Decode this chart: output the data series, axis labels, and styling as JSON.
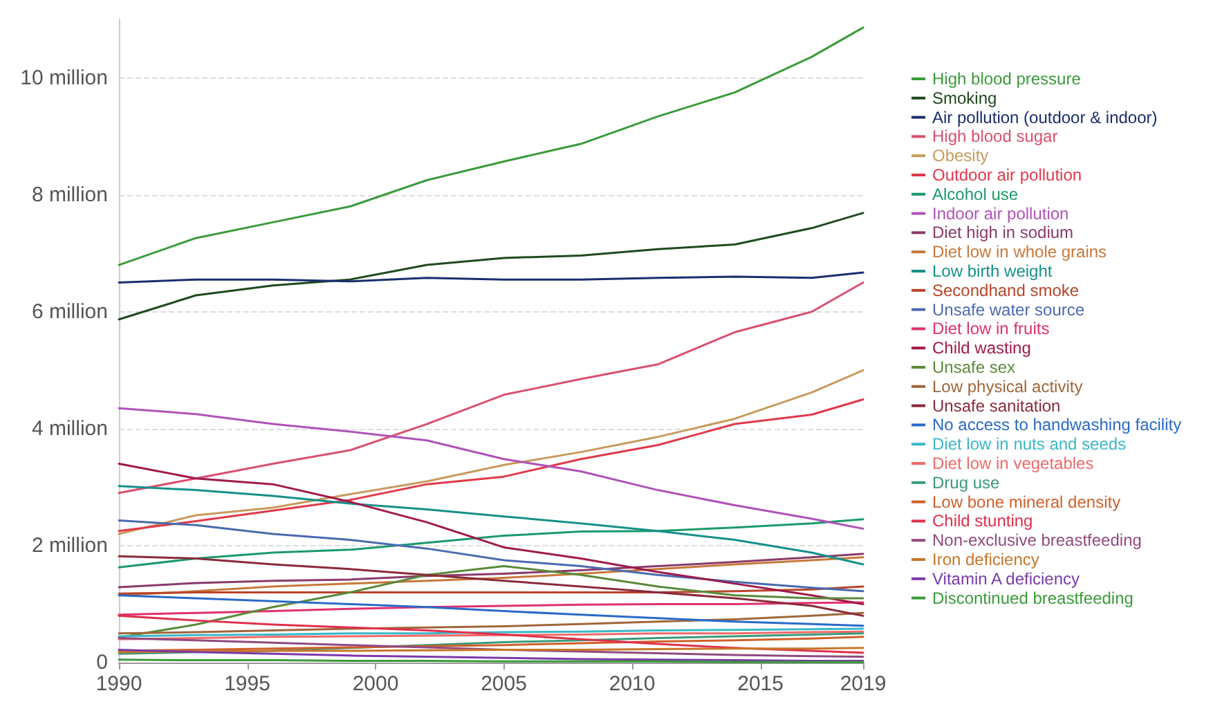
{
  "chart_data": {
    "type": "line",
    "x": [
      1990,
      1993,
      1996,
      1999,
      2002,
      2005,
      2008,
      2011,
      2014,
      2017,
      2019
    ],
    "xlim": [
      1990,
      2019
    ],
    "xticks": [
      1990,
      1995,
      2000,
      2005,
      2010,
      2015,
      2019
    ],
    "ylim": [
      0,
      11
    ],
    "yticks": [
      0,
      {
        "value": 2,
        "label": "2 million"
      },
      {
        "value": 4,
        "label": "4 million"
      },
      {
        "value": 6,
        "label": "6 million"
      },
      {
        "value": 8,
        "label": "8 million"
      },
      {
        "value": 10,
        "label": "10 million"
      }
    ],
    "grid": "y",
    "legend": "right",
    "marker": "none",
    "line_style": "solid",
    "series": [
      {
        "name": "High blood pressure",
        "color": "#3a9b3a",
        "values": [
          6.8,
          7.26,
          7.53,
          7.8,
          8.25,
          8.57,
          8.87,
          9.34,
          9.75,
          10.36,
          10.86
        ]
      },
      {
        "name": "Smoking",
        "color": "#1e4a1e",
        "values": [
          5.87,
          6.28,
          6.45,
          6.55,
          6.8,
          6.92,
          6.96,
          7.07,
          7.15,
          7.43,
          7.69
        ]
      },
      {
        "name": "Air pollution (outdoor & indoor)",
        "color": "#1a2e6e",
        "values": [
          6.5,
          6.55,
          6.55,
          6.52,
          6.58,
          6.55,
          6.55,
          6.58,
          6.6,
          6.58,
          6.67
        ]
      },
      {
        "name": "High blood sugar",
        "color": "#d9506e",
        "values": [
          2.9,
          3.15,
          3.4,
          3.63,
          4.08,
          4.58,
          4.85,
          5.1,
          5.65,
          6.0,
          6.5
        ]
      },
      {
        "name": "Obesity",
        "color": "#c89a5c",
        "values": [
          2.2,
          2.52,
          2.65,
          2.88,
          3.1,
          3.38,
          3.6,
          3.86,
          4.17,
          4.62,
          5.0
        ]
      },
      {
        "name": "Outdoor air pollution",
        "color": "#e0394a",
        "values": [
          2.25,
          2.42,
          2.6,
          2.78,
          3.05,
          3.18,
          3.48,
          3.72,
          4.08,
          4.24,
          4.5
        ]
      },
      {
        "name": "Alcohol use",
        "color": "#1a9a6a",
        "values": [
          1.63,
          1.78,
          1.88,
          1.93,
          2.05,
          2.17,
          2.24,
          2.25,
          2.31,
          2.38,
          2.45
        ]
      },
      {
        "name": "Indoor air pollution",
        "color": "#b052b8",
        "values": [
          4.35,
          4.25,
          4.08,
          3.95,
          3.8,
          3.48,
          3.27,
          2.95,
          2.69,
          2.46,
          2.29
        ]
      },
      {
        "name": "Diet high in sodium",
        "color": "#8a3a6a",
        "values": [
          1.29,
          1.36,
          1.4,
          1.42,
          1.48,
          1.52,
          1.58,
          1.65,
          1.72,
          1.8,
          1.86
        ]
      },
      {
        "name": "Diet low in whole grains",
        "color": "#c8783a",
        "values": [
          1.15,
          1.22,
          1.3,
          1.35,
          1.4,
          1.45,
          1.52,
          1.6,
          1.68,
          1.75,
          1.8
        ]
      },
      {
        "name": "Low birth weight",
        "color": "#15908a",
        "values": [
          3.02,
          2.95,
          2.85,
          2.72,
          2.62,
          2.5,
          2.38,
          2.25,
          2.1,
          1.88,
          1.68
        ]
      },
      {
        "name": "Secondhand smoke",
        "color": "#b8442a",
        "values": [
          1.18,
          1.2,
          1.2,
          1.2,
          1.2,
          1.2,
          1.2,
          1.2,
          1.22,
          1.25,
          1.3
        ]
      },
      {
        "name": "Unsafe water source",
        "color": "#4a6ab0",
        "values": [
          2.43,
          2.35,
          2.2,
          2.1,
          1.95,
          1.75,
          1.65,
          1.5,
          1.38,
          1.28,
          1.22
        ]
      },
      {
        "name": "Diet low in fruits",
        "color": "#e03070",
        "values": [
          0.82,
          0.85,
          0.88,
          0.92,
          0.95,
          0.97,
          0.99,
          1.0,
          1.0,
          1.02,
          1.03
        ]
      },
      {
        "name": "Child wasting",
        "color": "#a01a4a",
        "values": [
          3.4,
          3.15,
          3.05,
          2.75,
          2.4,
          1.97,
          1.78,
          1.55,
          1.35,
          1.15,
          1.0
        ]
      },
      {
        "name": "Unsafe sex",
        "color": "#5a8a3a",
        "values": [
          0.43,
          0.65,
          0.95,
          1.2,
          1.5,
          1.65,
          1.5,
          1.3,
          1.15,
          1.1,
          1.1
        ]
      },
      {
        "name": "Low physical activity",
        "color": "#a0663a",
        "values": [
          0.5,
          0.52,
          0.55,
          0.58,
          0.6,
          0.62,
          0.66,
          0.7,
          0.74,
          0.8,
          0.85
        ]
      },
      {
        "name": "Unsafe sanitation",
        "color": "#8a2a3a",
        "values": [
          1.82,
          1.78,
          1.68,
          1.6,
          1.5,
          1.4,
          1.3,
          1.2,
          1.1,
          0.97,
          0.8
        ]
      },
      {
        "name": "No access to handwashing facility",
        "color": "#2a6ac8",
        "values": [
          1.15,
          1.1,
          1.05,
          1.0,
          0.95,
          0.88,
          0.82,
          0.76,
          0.7,
          0.66,
          0.63
        ]
      },
      {
        "name": "Diet low in nuts and seeds",
        "color": "#3ab8c8",
        "values": [
          0.45,
          0.47,
          0.48,
          0.5,
          0.5,
          0.52,
          0.53,
          0.55,
          0.56,
          0.57,
          0.58
        ]
      },
      {
        "name": "Diet low in vegetables",
        "color": "#f06a6a",
        "values": [
          0.4,
          0.42,
          0.44,
          0.45,
          0.46,
          0.47,
          0.48,
          0.5,
          0.5,
          0.52,
          0.53
        ]
      },
      {
        "name": "Drug use",
        "color": "#3a9a7a",
        "values": [
          0.15,
          0.18,
          0.2,
          0.25,
          0.3,
          0.35,
          0.38,
          0.42,
          0.45,
          0.48,
          0.5
        ]
      },
      {
        "name": "Low bone mineral density",
        "color": "#d0602a",
        "values": [
          0.2,
          0.22,
          0.24,
          0.26,
          0.28,
          0.3,
          0.33,
          0.36,
          0.38,
          0.41,
          0.44
        ]
      },
      {
        "name": "Child stunting",
        "color": "#e0304a",
        "values": [
          0.8,
          0.72,
          0.65,
          0.6,
          0.55,
          0.48,
          0.4,
          0.32,
          0.25,
          0.2,
          0.17
        ]
      },
      {
        "name": "Non-exclusive breastfeeding",
        "color": "#904a80",
        "values": [
          0.42,
          0.38,
          0.34,
          0.3,
          0.26,
          0.22,
          0.19,
          0.16,
          0.13,
          0.11,
          0.1
        ]
      },
      {
        "name": "Iron deficiency",
        "color": "#c8762a",
        "values": [
          0.18,
          0.19,
          0.2,
          0.2,
          0.21,
          0.22,
          0.22,
          0.23,
          0.24,
          0.24,
          0.25
        ]
      },
      {
        "name": "Vitamin A deficiency",
        "color": "#7a3aa8",
        "values": [
          0.22,
          0.18,
          0.15,
          0.12,
          0.1,
          0.08,
          0.06,
          0.05,
          0.04,
          0.03,
          0.03
        ]
      },
      {
        "name": "Discontinued breastfeeding",
        "color": "#3a9a3a",
        "values": [
          0.05,
          0.04,
          0.04,
          0.03,
          0.03,
          0.02,
          0.02,
          0.02,
          0.01,
          0.01,
          0.01
        ]
      }
    ]
  }
}
